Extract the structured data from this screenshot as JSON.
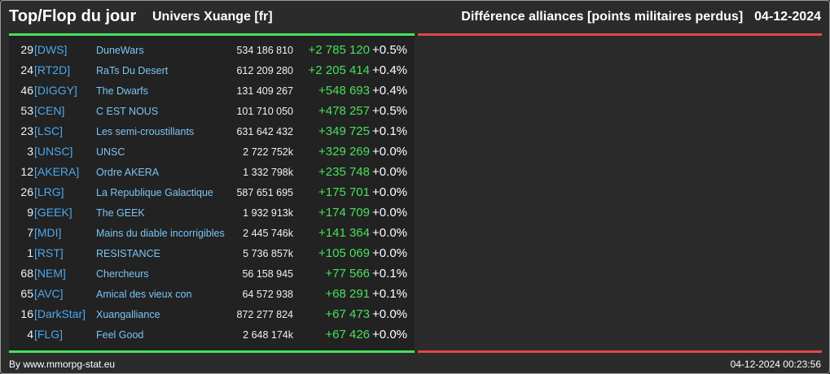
{
  "header": {
    "title": "Top/Flop du jour",
    "universe": "Univers Xuange [fr]",
    "subtitle": "Différence alliances [points militaires perdus]",
    "date": "04-12-2024"
  },
  "colors": {
    "background": "#2b2b2b",
    "tag": "#4aa8f0",
    "name": "#7cc4f4",
    "positive": "#48e05a",
    "negative": "#e04848"
  },
  "top": [
    {
      "rank": "29",
      "tag": "[DWS]",
      "name": "DuneWars",
      "points": "534 186 810",
      "diff": "+2 785 120",
      "pct": "+0.5%"
    },
    {
      "rank": "24",
      "tag": "[RT2D]",
      "name": "RaTs Du Desert",
      "points": "612 209 280",
      "diff": "+2 205 414",
      "pct": "+0.4%"
    },
    {
      "rank": "46",
      "tag": "[DIGGY]",
      "name": "The Dwarfs",
      "points": "131 409 267",
      "diff": "+548 693",
      "pct": "+0.4%"
    },
    {
      "rank": "53",
      "tag": "[CEN]",
      "name": "C EST NOUS",
      "points": "101 710 050",
      "diff": "+478 257",
      "pct": "+0.5%"
    },
    {
      "rank": "23",
      "tag": "[LSC]",
      "name": "Les semi-croustillants",
      "points": "631 642 432",
      "diff": "+349 725",
      "pct": "+0.1%"
    },
    {
      "rank": "3",
      "tag": "[UNSC]",
      "name": "UNSC",
      "points": "2 722 752k",
      "diff": "+329 269",
      "pct": "+0.0%"
    },
    {
      "rank": "12",
      "tag": "[AKERA]",
      "name": "Ordre AKERA",
      "points": "1 332 798k",
      "diff": "+235 748",
      "pct": "+0.0%"
    },
    {
      "rank": "26",
      "tag": "[LRG]",
      "name": "La Republique Galactique",
      "points": "587 651 695",
      "diff": "+175 701",
      "pct": "+0.0%"
    },
    {
      "rank": "9",
      "tag": "[GEEK]",
      "name": "The GEEK",
      "points": "1 932 913k",
      "diff": "+174 709",
      "pct": "+0.0%"
    },
    {
      "rank": "7",
      "tag": "[MDI]",
      "name": "Mains du diable incorrigibles",
      "points": "2 445 746k",
      "diff": "+141 364",
      "pct": "+0.0%"
    },
    {
      "rank": "1",
      "tag": "[RST]",
      "name": "RESISTANCE",
      "points": "5 736 857k",
      "diff": "+105 069",
      "pct": "+0.0%"
    },
    {
      "rank": "68",
      "tag": "[NEM]",
      "name": "Chercheurs",
      "points": "56 158 945",
      "diff": "+77 566",
      "pct": "+0.1%"
    },
    {
      "rank": "65",
      "tag": "[AVC]",
      "name": "Amical des vieux con",
      "points": "64 572 938",
      "diff": "+68 291",
      "pct": "+0.1%"
    },
    {
      "rank": "16",
      "tag": "[DarkStar]",
      "name": "Xuangalliance",
      "points": "872 277 824",
      "diff": "+67 473",
      "pct": "+0.0%"
    },
    {
      "rank": "4",
      "tag": "[FLG]",
      "name": "Feel Good",
      "points": "2 648 174k",
      "diff": "+67 426",
      "pct": "+0.0%"
    }
  ],
  "footer": {
    "credit": "By www.mmorpg-stat.eu",
    "timestamp": "04-12-2024 00:23:56"
  }
}
